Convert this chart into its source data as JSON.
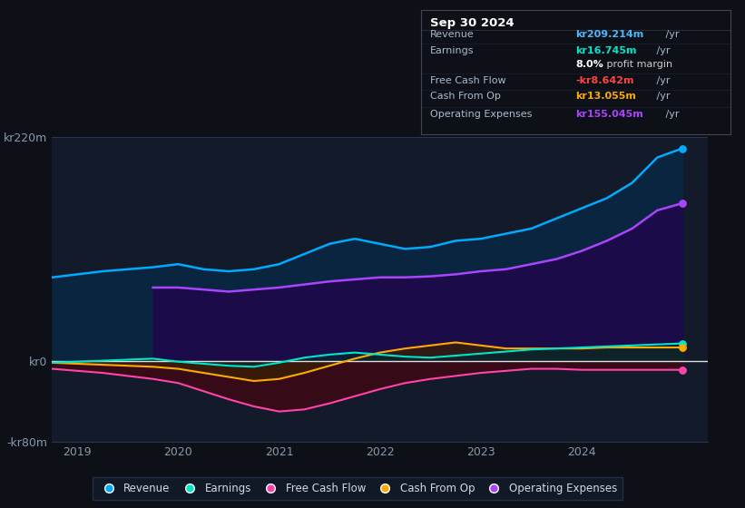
{
  "bg_color": "#0d1117",
  "plot_bg_color": "#131a2a",
  "ylim": [
    -80,
    220
  ],
  "xlim": [
    2018.75,
    2025.25
  ],
  "xtick_labels": [
    "2019",
    "2020",
    "2021",
    "2022",
    "2023",
    "2024"
  ],
  "xtick_positions": [
    2019,
    2020,
    2021,
    2022,
    2023,
    2024
  ],
  "grid_color": "#2a3550",
  "zero_line_color": "#e0e0e0",
  "info_box": {
    "title": "Sep 30 2024",
    "rows": [
      {
        "label": "Revenue",
        "value": "kr209.214m",
        "suffix": " /yr",
        "value_color": "#4db8ff"
      },
      {
        "label": "Earnings",
        "value": "kr16.745m",
        "suffix": " /yr",
        "value_color": "#00e5cc"
      },
      {
        "label": "",
        "value": "8.0%",
        "suffix": " profit margin",
        "value_color": "#ffffff",
        "suffix_color": "#cccccc"
      },
      {
        "label": "Free Cash Flow",
        "value": "-kr8.642m",
        "suffix": " /yr",
        "value_color": "#ff4444"
      },
      {
        "label": "Cash From Op",
        "value": "kr13.055m",
        "suffix": " /yr",
        "value_color": "#ffaa00"
      },
      {
        "label": "Operating Expenses",
        "value": "kr155.045m",
        "suffix": " /yr",
        "value_color": "#aa44ff"
      }
    ]
  },
  "series": {
    "revenue": {
      "color": "#00aaff",
      "label": "Revenue",
      "x": [
        2018.75,
        2019.0,
        2019.25,
        2019.5,
        2019.75,
        2020.0,
        2020.25,
        2020.5,
        2020.75,
        2021.0,
        2021.25,
        2021.5,
        2021.75,
        2022.0,
        2022.25,
        2022.5,
        2022.75,
        2023.0,
        2023.25,
        2023.5,
        2023.75,
        2024.0,
        2024.25,
        2024.5,
        2024.75,
        2025.0
      ],
      "y": [
        82,
        85,
        88,
        90,
        92,
        95,
        90,
        88,
        90,
        95,
        105,
        115,
        120,
        115,
        110,
        112,
        118,
        120,
        125,
        130,
        140,
        150,
        160,
        175,
        200,
        209
      ]
    },
    "operating_expenses": {
      "color": "#aa44ff",
      "label": "Operating Expenses",
      "x": [
        2019.75,
        2020.0,
        2020.25,
        2020.5,
        2020.75,
        2021.0,
        2021.25,
        2021.5,
        2021.75,
        2022.0,
        2022.25,
        2022.5,
        2022.75,
        2023.0,
        2023.25,
        2023.5,
        2023.75,
        2024.0,
        2024.25,
        2024.5,
        2024.75,
        2025.0
      ],
      "y": [
        72,
        72,
        70,
        68,
        70,
        72,
        75,
        78,
        80,
        82,
        82,
        83,
        85,
        88,
        90,
        95,
        100,
        108,
        118,
        130,
        148,
        155
      ]
    },
    "earnings": {
      "color": "#00e5cc",
      "label": "Earnings",
      "x": [
        2018.75,
        2019.0,
        2019.25,
        2019.5,
        2019.75,
        2020.0,
        2020.25,
        2020.5,
        2020.75,
        2021.0,
        2021.25,
        2021.5,
        2021.75,
        2022.0,
        2022.25,
        2022.5,
        2022.75,
        2023.0,
        2023.25,
        2023.5,
        2023.75,
        2024.0,
        2024.25,
        2024.5,
        2024.75,
        2025.0
      ],
      "y": [
        -2,
        -1,
        0,
        1,
        2,
        -1,
        -3,
        -5,
        -6,
        -2,
        3,
        6,
        8,
        6,
        4,
        3,
        5,
        7,
        9,
        11,
        12,
        13,
        14,
        15,
        16,
        17
      ]
    },
    "free_cash_flow": {
      "color": "#ff44aa",
      "label": "Free Cash Flow",
      "x": [
        2018.75,
        2019.0,
        2019.25,
        2019.5,
        2019.75,
        2020.0,
        2020.25,
        2020.5,
        2020.75,
        2021.0,
        2021.25,
        2021.5,
        2021.75,
        2022.0,
        2022.25,
        2022.5,
        2022.75,
        2023.0,
        2023.25,
        2023.5,
        2023.75,
        2024.0,
        2024.25,
        2024.5,
        2024.75,
        2025.0
      ],
      "y": [
        -8,
        -10,
        -12,
        -15,
        -18,
        -22,
        -30,
        -38,
        -45,
        -50,
        -48,
        -42,
        -35,
        -28,
        -22,
        -18,
        -15,
        -12,
        -10,
        -8,
        -8,
        -9,
        -9,
        -9,
        -9,
        -9
      ]
    },
    "cash_from_op": {
      "color": "#ffaa00",
      "label": "Cash From Op",
      "x": [
        2018.75,
        2019.0,
        2019.25,
        2019.5,
        2019.75,
        2020.0,
        2020.25,
        2020.5,
        2020.75,
        2021.0,
        2021.25,
        2021.5,
        2021.75,
        2022.0,
        2022.25,
        2022.5,
        2022.75,
        2023.0,
        2023.25,
        2023.5,
        2023.75,
        2024.0,
        2024.25,
        2024.5,
        2024.75,
        2025.0
      ],
      "y": [
        -2,
        -3,
        -4,
        -5,
        -6,
        -8,
        -12,
        -16,
        -20,
        -18,
        -12,
        -5,
        2,
        8,
        12,
        15,
        18,
        15,
        12,
        12,
        12,
        12,
        13,
        13,
        13,
        13
      ]
    }
  },
  "legend": [
    {
      "label": "Revenue",
      "color": "#00aaff"
    },
    {
      "label": "Earnings",
      "color": "#00e5cc"
    },
    {
      "label": "Free Cash Flow",
      "color": "#ff44aa"
    },
    {
      "label": "Cash From Op",
      "color": "#ffaa00"
    },
    {
      "label": "Operating Expenses",
      "color": "#aa44ff"
    }
  ]
}
